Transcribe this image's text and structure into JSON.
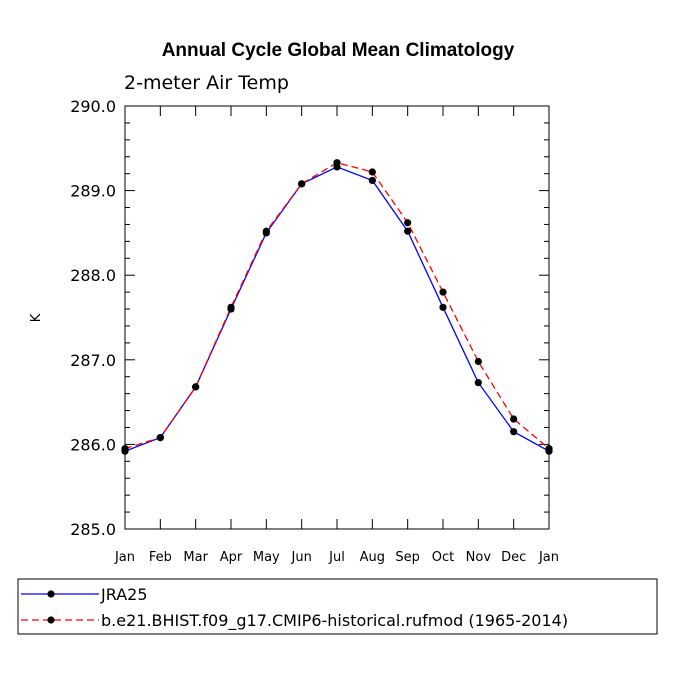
{
  "chart_data": {
    "type": "line",
    "title": "Annual Cycle Global Mean Climatology",
    "subtitle": "2-meter Air Temp",
    "ylabel": "K",
    "xlabel": "",
    "categories": [
      "Jan",
      "Feb",
      "Mar",
      "Apr",
      "May",
      "Jun",
      "Jul",
      "Aug",
      "Sep",
      "Oct",
      "Nov",
      "Dec",
      "Jan"
    ],
    "ylim": [
      285.0,
      290.0
    ],
    "yticks": [
      "285.0",
      "286.0",
      "287.0",
      "288.0",
      "289.0",
      "290.0"
    ],
    "grid": false,
    "legend_position": "bottom",
    "series": [
      {
        "name": "JRA25",
        "color": "#0000ff",
        "line_style": "solid",
        "values": [
          285.92,
          286.08,
          286.68,
          287.6,
          288.5,
          289.08,
          289.28,
          289.12,
          288.52,
          287.62,
          286.73,
          286.15,
          285.92
        ]
      },
      {
        "name": "b.e21.BHIST.f09_g17.CMIP6-historical.rufmod (1965-2014)",
        "color": "#ff0000",
        "line_style": "dashed",
        "values": [
          285.95,
          286.08,
          286.68,
          287.62,
          288.52,
          289.08,
          289.33,
          289.22,
          288.62,
          287.8,
          286.98,
          286.3,
          285.95
        ]
      }
    ]
  }
}
